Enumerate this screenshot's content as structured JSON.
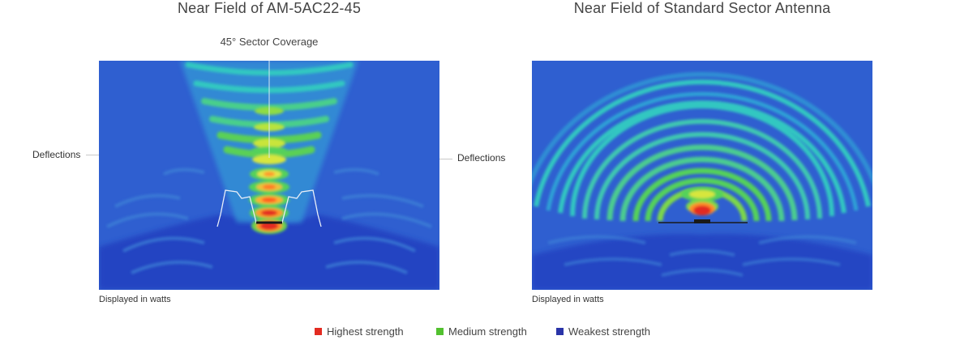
{
  "panels": {
    "left": {
      "title": "Near Field of AM-5AC22-45",
      "coverage_label": "45° Sector Coverage",
      "deflections_left": "Deflections",
      "deflections_right": "Deflections",
      "caption": "Displayed in watts"
    },
    "right": {
      "title": "Near Field of Standard Sector Antenna",
      "caption": "Displayed in watts"
    }
  },
  "legend": {
    "items": [
      {
        "label": "Highest strength",
        "color": "#e32b21"
      },
      {
        "label": "Medium strength",
        "color": "#52c12f"
      },
      {
        "label": "Weakest strength",
        "color": "#2a34a8"
      }
    ]
  },
  "colors": {
    "background_field": "#2f5fd0",
    "deep_field": "#2440c0",
    "cyan": "#2ec6c6",
    "green": "#55d25a",
    "yellow": "#e4e54a",
    "orange": "#ff8c2a",
    "red": "#e32b21"
  }
}
